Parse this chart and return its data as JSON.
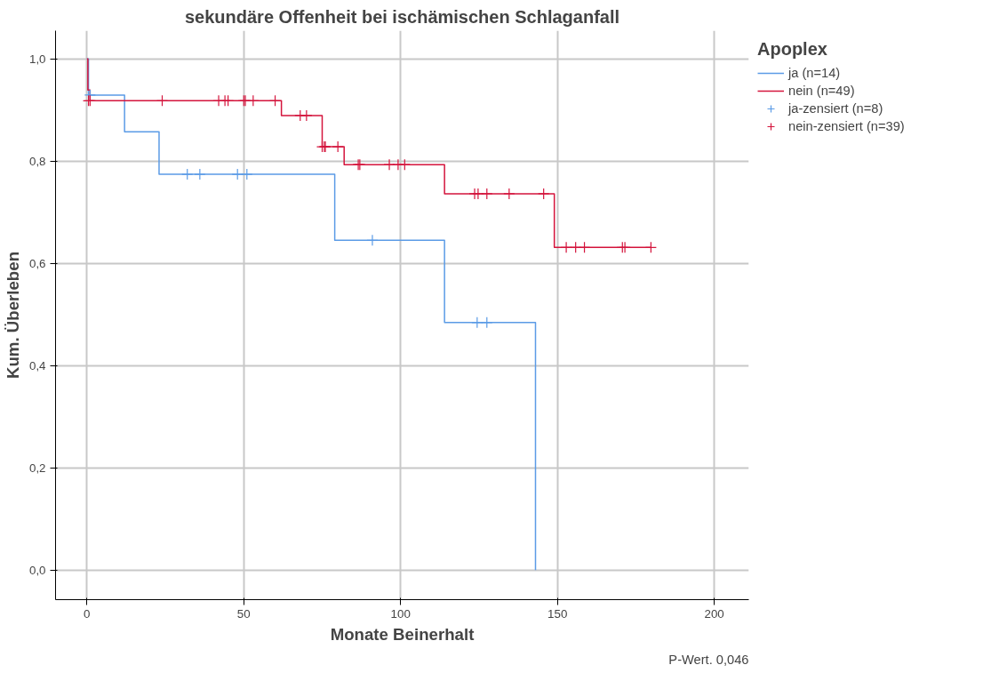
{
  "chart_data": {
    "type": "step",
    "title": "sekundäre Offenheit bei ischämischen Schlaganfall",
    "xlabel": "Monate Beinerhalt",
    "ylabel": "Kum. Überleben",
    "legend_title": "Apoplex",
    "series": [
      {
        "name": "ja (n=14)",
        "color": "#5b9be6",
        "x": [
          0,
          0.5,
          12,
          23,
          79,
          114,
          143
        ],
        "values": [
          1,
          0.929,
          0.857,
          0.774,
          0.645,
          0.484,
          0
        ]
      },
      {
        "name": "nein (n=49)",
        "color": "#d4143c",
        "x": [
          0,
          0.3,
          1,
          62,
          75,
          82,
          114,
          149,
          179.8
        ],
        "values": [
          1,
          0.939,
          0.918,
          0.889,
          0.828,
          0.793,
          0.736,
          0.631,
          0.631
        ]
      },
      {
        "name": "ja-zensiert (n=8)",
        "type": "scatter",
        "marker": "cross",
        "color": "#5b9be6",
        "x": [
          1,
          32,
          36,
          48,
          51,
          91,
          124.4,
          127.5
        ],
        "values": [
          0.929,
          0.774,
          0.774,
          0.774,
          0.774,
          0.645,
          0.484,
          0.484
        ]
      },
      {
        "name": "nein-zensiert (n=39)",
        "type": "scatter",
        "marker": "cross",
        "color": "#d4143c",
        "x": [
          0.5,
          1,
          24,
          42,
          44,
          45,
          50,
          50.5,
          53,
          60,
          68,
          70,
          75,
          75.7,
          76,
          80,
          86.5,
          87,
          96.4,
          99.2,
          101.3,
          123.6,
          124.7,
          127.5,
          134.6,
          145.6,
          152.8,
          155.8,
          158.6,
          170.7,
          171.5,
          179.8
        ],
        "values": [
          0.918,
          0.918,
          0.918,
          0.918,
          0.918,
          0.918,
          0.918,
          0.918,
          0.918,
          0.918,
          0.889,
          0.889,
          0.828,
          0.828,
          0.828,
          0.828,
          0.793,
          0.793,
          0.793,
          0.793,
          0.793,
          0.736,
          0.736,
          0.736,
          0.736,
          0.736,
          0.631,
          0.631,
          0.631,
          0.631,
          0.631,
          0.631
        ]
      }
    ],
    "xlim": [
      -10,
      211
    ],
    "ylim": [
      -0.058,
      1.055
    ],
    "xticks": [
      0,
      50,
      100,
      150,
      200
    ],
    "yticks": [
      {
        "value": 0,
        "label": "0,0"
      },
      {
        "value": 0.2,
        "label": "0,2"
      },
      {
        "value": 0.4,
        "label": "0,4"
      },
      {
        "value": 0.6,
        "label": "0,6"
      },
      {
        "value": 0.8,
        "label": "0,8"
      },
      {
        "value": 1,
        "label": "1,0"
      }
    ],
    "grid": true,
    "legend": "top right",
    "annotations": [
      "P-Wert. 0,046"
    ]
  }
}
